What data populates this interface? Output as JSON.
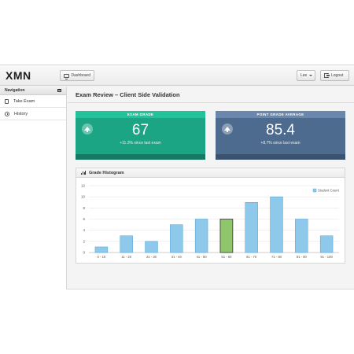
{
  "header": {
    "brand": "XMN",
    "dashboard_label": "Dashboard",
    "user_label": "Lee",
    "logout_label": "Logout"
  },
  "sidebar": {
    "title": "Navigation",
    "items": [
      {
        "label": "Take Exam",
        "icon": "document-icon"
      },
      {
        "label": "History",
        "icon": "clock-icon"
      }
    ]
  },
  "page": {
    "title": "Exam Review – Client Side Validation"
  },
  "stats": [
    {
      "header": "EXAM GRADE",
      "value": "67",
      "sub": "+11.3% since last exam",
      "color": "#1ba584"
    },
    {
      "header": "POINT GRADE AVERAGE",
      "value": "85.4",
      "sub": "+8.7% since last exam",
      "color": "#4d6a8f"
    }
  ],
  "histogram": {
    "title": "Grade Histogram",
    "chart_data": {
      "type": "bar",
      "categories": [
        "0 - 10",
        "11 - 20",
        "21 - 30",
        "31 - 40",
        "41 - 50",
        "51 - 60",
        "61 - 70",
        "71 - 80",
        "81 - 90",
        "91 - 100"
      ],
      "series": [
        {
          "name": "Student Count",
          "values": [
            1,
            3,
            2,
            5,
            6,
            6,
            9,
            10,
            6,
            3
          ]
        }
      ],
      "highlight_category": "51 - 60",
      "ylim": [
        0,
        12
      ],
      "yticks": [
        0,
        2,
        4,
        6,
        8,
        10,
        12
      ],
      "legend": "top-right",
      "grid": true,
      "colors": {
        "bar": "#8ec8ea",
        "bar_stroke": "#4ba0d6",
        "highlight": "#8fc66c",
        "highlight_stroke": "#333333"
      }
    }
  }
}
